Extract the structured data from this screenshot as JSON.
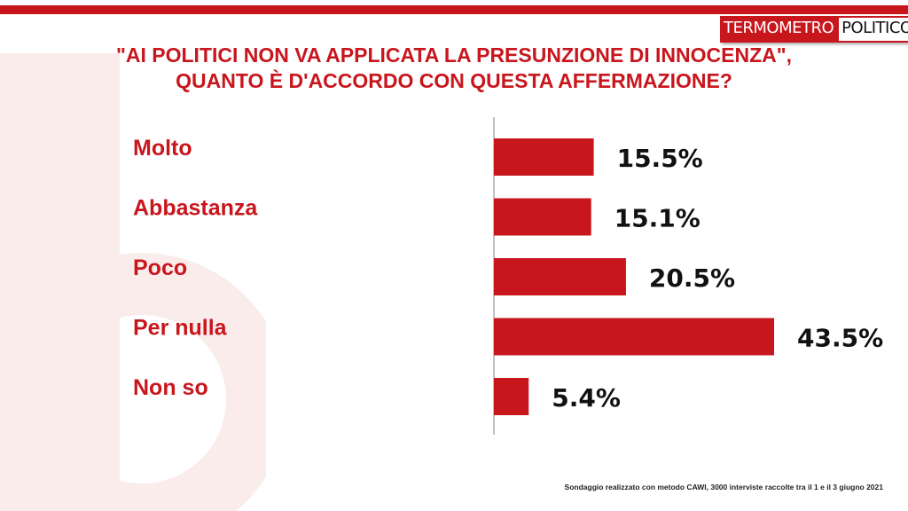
{
  "brand": {
    "logo_left": "TERMOMETRO",
    "logo_right": "POLITICO"
  },
  "header": {
    "title_line1": "\"AI POLITICI NON VA APPLICATA LA PRESUNZIONE DI INNOCENZA\",",
    "title_line2": "QUANTO È D'ACCORDO CON QUESTA AFFERMAZIONE?"
  },
  "footer": {
    "note": "Sondaggio realizzato con metodo CAWI, 3000 interviste raccolte tra il 1  e il 3 giugno 2021"
  },
  "colors": {
    "accent": "#c8161d",
    "label": "#c8161d",
    "value": "#111111"
  },
  "chart_data": {
    "type": "bar",
    "orientation": "horizontal",
    "categories": [
      "Molto",
      "Abbastanza",
      "Poco",
      "Per nulla",
      "Non so"
    ],
    "values": [
      15.5,
      15.1,
      20.5,
      43.5,
      5.4
    ],
    "value_labels": [
      "15.5%",
      "15.1%",
      "20.5%",
      "43.5%",
      "5.4%"
    ],
    "title": "\"AI POLITICI NON VA APPLICATA LA PRESUNZIONE DI INNOCENZA\", QUANTO È D'ACCORDO CON QUESTA AFFERMAZIONE?",
    "xlim": [
      0,
      43.5
    ],
    "grid": false,
    "legend": "none"
  }
}
